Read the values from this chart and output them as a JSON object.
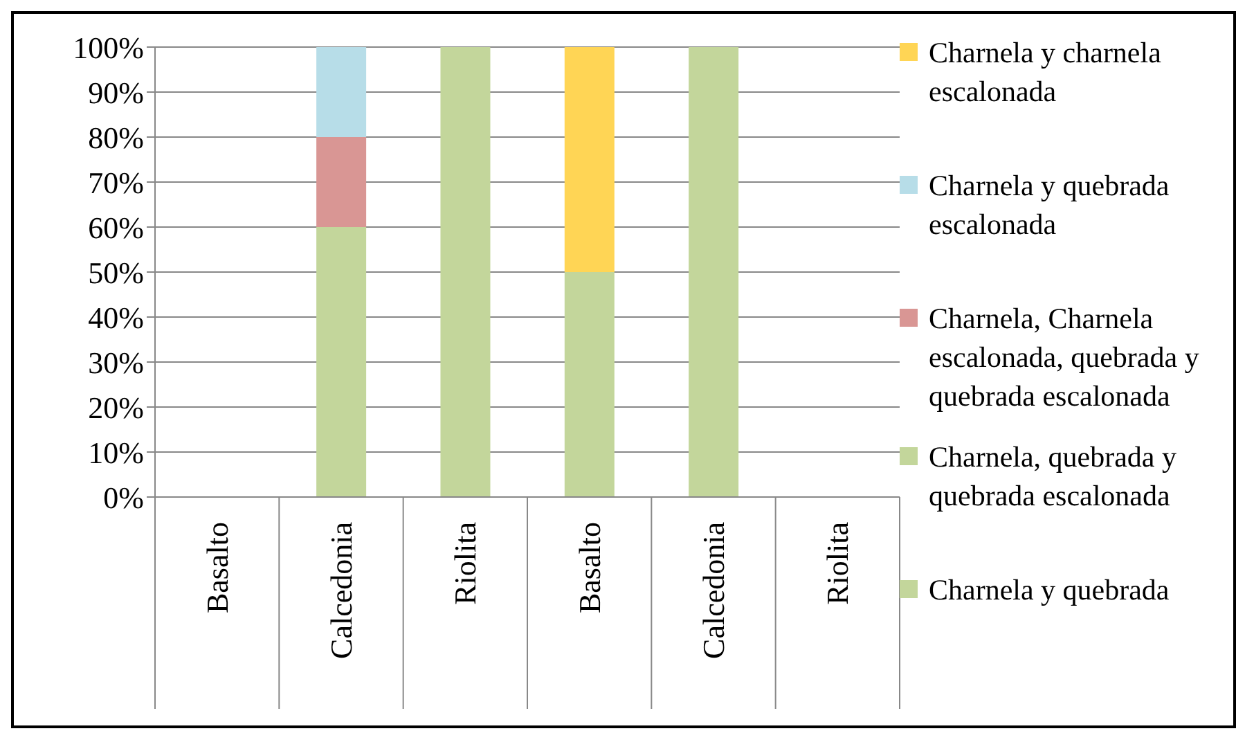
{
  "chart_data": {
    "type": "bar",
    "stacked": true,
    "categories": [
      "Basalto",
      "Calcedonia",
      "Riolita",
      "Basalto",
      "Calcedonia",
      "Riolita"
    ],
    "series": [
      {
        "name": "Charnela y quebrada",
        "color": "#c3d69b",
        "values": [
          null,
          60,
          100,
          50,
          100,
          null
        ]
      },
      {
        "name": "Charnela, quebrada y quebrada escalonada",
        "color": "#c3d69b",
        "values": [
          null,
          null,
          null,
          null,
          null,
          null
        ]
      },
      {
        "name": "Charnela, Charnela escalonada, quebrada y quebrada escalonada",
        "color": "#d99694",
        "values": [
          null,
          20,
          null,
          null,
          null,
          null
        ]
      },
      {
        "name": "Charnela y quebrada escalonada",
        "color": "#b7dde8",
        "values": [
          null,
          20,
          null,
          null,
          null,
          null
        ]
      },
      {
        "name": "Charnela y charnela escalonada",
        "color": "#ffd555",
        "values": [
          null,
          null,
          null,
          50,
          null,
          null
        ]
      }
    ],
    "ylim": [
      0,
      100
    ],
    "yticks": [
      {
        "value": 0,
        "label": "0%"
      },
      {
        "value": 10,
        "label": "10%"
      },
      {
        "value": 20,
        "label": "20%"
      },
      {
        "value": 30,
        "label": "30%"
      },
      {
        "value": 40,
        "label": "40%"
      },
      {
        "value": 50,
        "label": "50%"
      },
      {
        "value": 60,
        "label": "60%"
      },
      {
        "value": 70,
        "label": "70%"
      },
      {
        "value": 80,
        "label": "80%"
      },
      {
        "value": 90,
        "label": "90%"
      },
      {
        "value": 100,
        "label": "100%"
      }
    ],
    "grid": "y",
    "legend": "right"
  }
}
